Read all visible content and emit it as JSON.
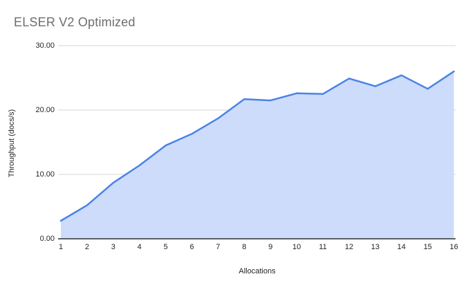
{
  "chart_data": {
    "type": "area",
    "title": "ELSER V2 Optimized",
    "xlabel": "Allocations",
    "ylabel": "Throughput (docs/s)",
    "x": [
      1,
      2,
      3,
      4,
      5,
      6,
      7,
      8,
      9,
      10,
      11,
      12,
      13,
      14,
      15,
      16
    ],
    "series": [
      {
        "name": "Throughput (docs/s)",
        "values": [
          2.8,
          5.2,
          8.7,
          11.4,
          14.5,
          16.3,
          18.7,
          21.7,
          21.5,
          22.6,
          22.5,
          24.9,
          23.7,
          25.4,
          23.3,
          26.0
        ]
      }
    ],
    "ylim": [
      0,
      30
    ],
    "yticks": [
      0,
      10,
      20,
      30
    ],
    "ytick_labels": [
      "0.00",
      "10.00",
      "20.00",
      "30.00"
    ],
    "grid": true,
    "legend": false
  },
  "colors": {
    "line": "#4a82e8",
    "fill": "#ccdcfa",
    "grid": "#d6d6d6",
    "axis": "#2f2f2f",
    "title_text": "#6d6d6d",
    "tick_text": "#1f1f1f"
  }
}
